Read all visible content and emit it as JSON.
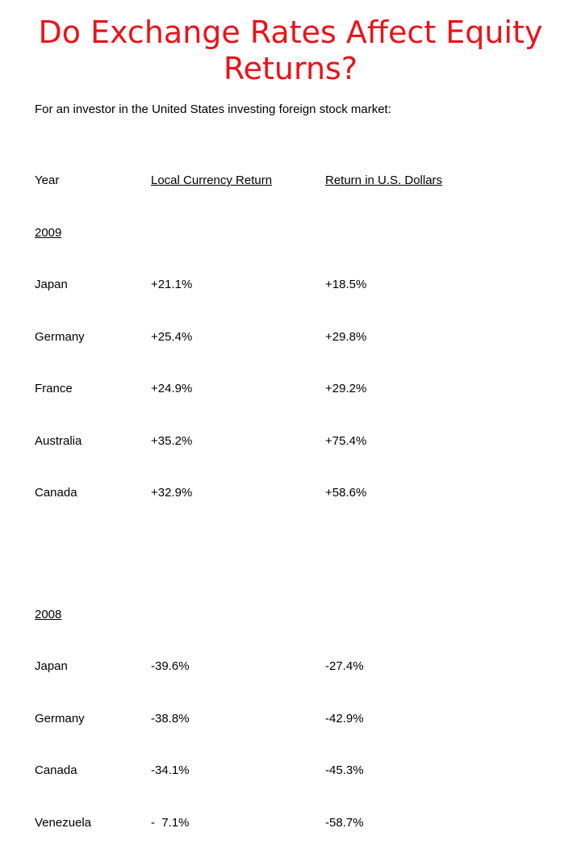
{
  "slide": {
    "title_line1": "Do Exchange Rates Affect Equity",
    "title_line2": "Returns?",
    "subtitle": "For an investor in the United States investing foreign stock market:"
  },
  "table": {
    "col_year": "Year",
    "col_local": "Local Currency Return",
    "col_usd": "Return in U.S. Dollars",
    "groups": [
      {
        "year": "2009",
        "rows": [
          {
            "country": "Japan",
            "local": "+21.1%",
            "usd": "+18.5%"
          },
          {
            "country": "Germany",
            "local": "+25.4%",
            "usd": "+29.8%"
          },
          {
            "country": "France",
            "local": "+24.9%",
            "usd": "+29.2%"
          },
          {
            "country": "Australia",
            "local": "+35.2%",
            "usd": "+75.4%"
          },
          {
            "country": "Canada",
            "local": "+32.9%",
            "usd": "+58.6%"
          }
        ]
      },
      {
        "year": "2008",
        "rows": [
          {
            "country": "Japan",
            "local": "-39.6%",
            "usd": "-27.4%"
          },
          {
            "country": "Germany",
            "local": "-38.8%",
            "usd": "-42.9%"
          },
          {
            "country": "Canada",
            "local": "-34.1%",
            "usd": "-45.3%"
          },
          {
            "country": "Venezuela",
            "local": "-  7.1%",
            "usd": "-58.7%"
          }
        ]
      }
    ]
  }
}
